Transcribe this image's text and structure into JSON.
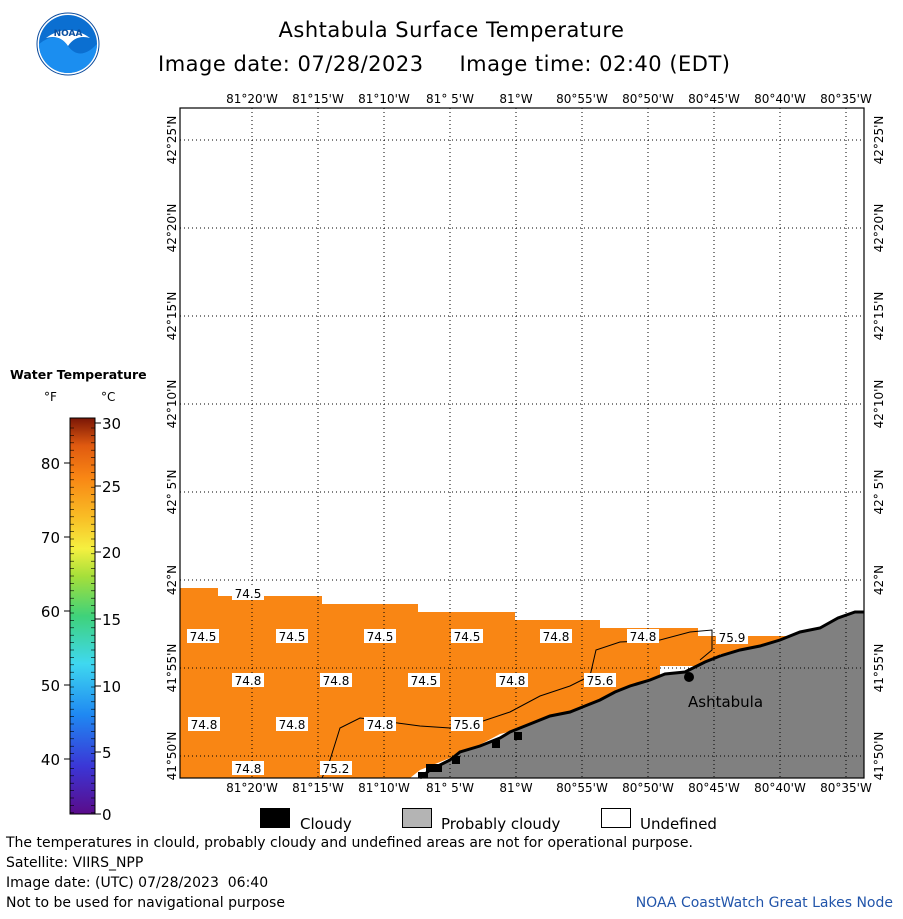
{
  "header": {
    "logo_text": "NOAA",
    "title": "Ashtabula Surface Temperature",
    "image_date_label": "Image date: 07/28/2023",
    "image_time_label": "Image time: 02:40 (EDT)"
  },
  "colors": {
    "water": "#f98614",
    "land": "#808080",
    "cloudy": "#000000",
    "probably_cloudy": "#b4b4b4",
    "undefined": "#ffffff"
  },
  "map": {
    "lon_labels": [
      "81°20'W",
      "81°15'W",
      "81°10'W",
      "81° 5'W",
      "81°W",
      "80°55'W",
      "80°50'W",
      "80°45'W",
      "80°40'W",
      "80°35'W"
    ],
    "lat_labels": [
      "42°25'N",
      "42°20'N",
      "42°15'N",
      "42°10'N",
      "42° 5'N",
      "42°N",
      "41°55'N",
      "41°50'N"
    ],
    "place_label": "Ashtabula",
    "temp_labels": [
      "74.5",
      "74.5",
      "74.5",
      "74.5",
      "74.5",
      "74.8",
      "74.8",
      "75.9",
      "74.8",
      "74.8",
      "74.5",
      "74.8",
      "75.6",
      "74.8",
      "74.8",
      "74.8",
      "75.6",
      "74.8",
      "75.2"
    ]
  },
  "legend": {
    "title": "Water Temperature",
    "unit_f": "°F",
    "unit_c": "°C",
    "f_ticks": [
      "80",
      "70",
      "60",
      "50",
      "40"
    ],
    "c_ticks": [
      "30",
      "25",
      "20",
      "15",
      "10",
      "5",
      "0"
    ]
  },
  "key": {
    "cloudy": "Cloudy",
    "probably_cloudy": "Probably cloudy",
    "undefined": "Undefined"
  },
  "footer": {
    "line1": "The temperatures in clould, probably cloudy and undefined areas are not for operational purpose.",
    "line2": "Satellite: VIIRS_NPP",
    "line3": "Image date: (UTC) 07/28/2023  06:40",
    "line4": "Not to be used for navigational purpose",
    "credit": "NOAA CoastWatch Great Lakes Node"
  }
}
